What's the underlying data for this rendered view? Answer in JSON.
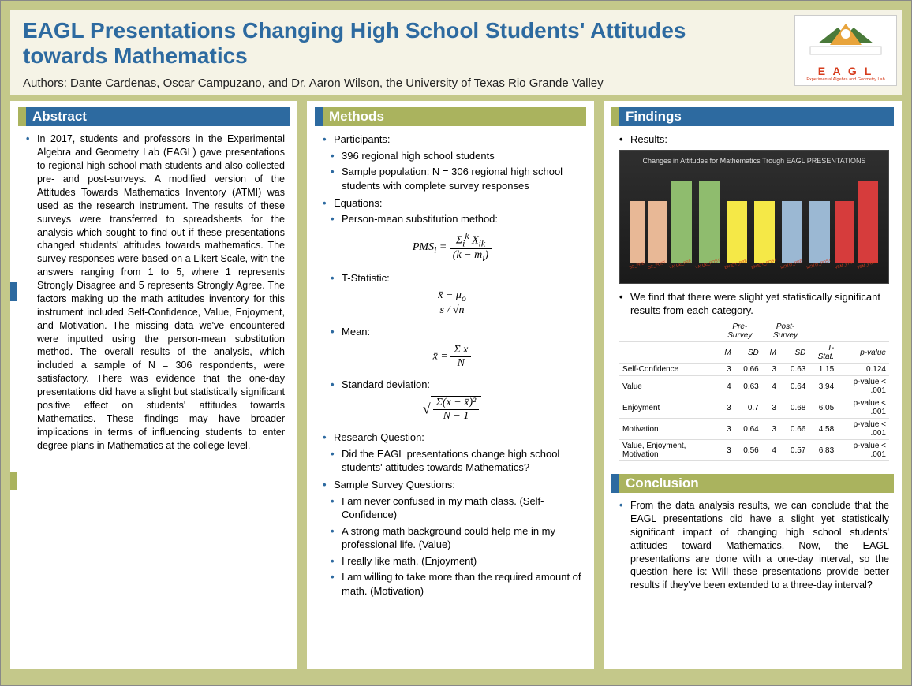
{
  "header": {
    "title": "EAGL Presentations Changing High School Students' Attitudes towards Mathematics",
    "authors": "Authors: Dante Cardenas, Oscar Campuzano, and Dr. Aaron Wilson, the University of Texas Rio Grande Valley",
    "logo_text": "E A G L",
    "logo_sub": "Experimental Algebra and Geometry Lab"
  },
  "colors": {
    "header_blue": "#2d6aa0",
    "header_olive": "#aab35e",
    "bg": "#c4c88a",
    "panel": "#ffffff",
    "chart_bg": "#2a2a2a"
  },
  "abstract": {
    "heading": "Abstract",
    "text": "In 2017, students and professors in the Experimental Algebra and Geometry Lab (EAGL) gave presentations to regional high school math students and also collected pre- and post-surveys. A modified version of the Attitudes Towards Mathematics Inventory (ATMI) was used as the research instrument. The results of these surveys were transferred to spreadsheets for the analysis which sought to find out if these presentations changed students' attitudes towards mathematics. The survey responses were based on a Likert Scale, with the answers ranging from 1 to 5, where 1 represents Strongly Disagree and 5 represents Strongly Agree. The factors making up the math attitudes inventory for this instrument included Self-Confidence, Value, Enjoyment, and Motivation. The missing data we've encountered were inputted using the person-mean substitution method. The overall results of the analysis, which included a sample of N = 306 respondents, were satisfactory. There was evidence that the one-day presentations did have a slight but statistically significant positive effect on students' attitudes towards Mathematics. These findings may have broader implications in terms of influencing students to enter degree plans in Mathematics at the college level."
  },
  "methods": {
    "heading": "Methods",
    "participants_label": "Participants:",
    "participants": [
      "396 regional high school students",
      "Sample population: N = 306 regional high school students with complete survey responses"
    ],
    "equations_label": "Equations:",
    "eq_items": [
      "Person-mean substitution method:",
      "T-Statistic:",
      "Mean:",
      "Standard deviation:"
    ],
    "research_q_label": "Research Question:",
    "research_q": "Did the EAGL presentations change high school students' attitudes towards Mathematics?",
    "sample_q_label": "Sample Survey Questions:",
    "sample_qs": [
      "I am never confused in my math class. (Self-Confidence)",
      "A strong math background could help me in my professional life. (Value)",
      "I really like math. (Enjoyment)",
      "I am willing to take more than the required amount of math. (Motivation)"
    ]
  },
  "findings": {
    "heading": "Findings",
    "results_label": "Results:",
    "chart": {
      "title": "Changes in Attitudes for Mathematics Trough EAGL PRESENTATIONS",
      "bars": [
        {
          "label": "SC_PRE",
          "value": 3.0,
          "color": "#e8b896"
        },
        {
          "label": "SC_POST",
          "value": 3.0,
          "color": "#e8b896"
        },
        {
          "label": "VALUE_PRE",
          "value": 4.0,
          "color": "#8fbc6e"
        },
        {
          "label": "VALUE_POST",
          "value": 4.0,
          "color": "#8fbc6e"
        },
        {
          "label": "ENJOY_PRE",
          "value": 3.0,
          "color": "#f5e847"
        },
        {
          "label": "ENJOY_POST",
          "value": 3.0,
          "color": "#f5e847"
        },
        {
          "label": "MOTIV_PRE",
          "value": 3.0,
          "color": "#9bb8d3"
        },
        {
          "label": "MOTIV_POST",
          "value": 3.0,
          "color": "#9bb8d3"
        },
        {
          "label": "VEM_PRE",
          "value": 3.0,
          "color": "#d63c3c"
        },
        {
          "label": "VEM_POST",
          "value": 4.0,
          "color": "#d63c3c"
        }
      ],
      "ymax": 5,
      "bar_height_scale": 26
    },
    "summary": "We find that there were slight yet statistically significant results from each category.",
    "table": {
      "group_headers": [
        "",
        "Pre-Survey",
        "Post-Survey",
        "",
        ""
      ],
      "columns": [
        "",
        "M",
        "SD",
        "M",
        "SD",
        "T-Stat.",
        "p-value"
      ],
      "rows": [
        [
          "Self-Confidence",
          "3",
          "0.66",
          "3",
          "0.63",
          "1.15",
          "0.124"
        ],
        [
          "Value",
          "4",
          "0.63",
          "4",
          "0.64",
          "3.94",
          "p-value < .001"
        ],
        [
          "Enjoyment",
          "3",
          "0.7",
          "3",
          "0.68",
          "6.05",
          "p-value < .001"
        ],
        [
          "Motivation",
          "3",
          "0.64",
          "3",
          "0.66",
          "4.58",
          "p-value < .001"
        ],
        [
          "Value, Enjoyment, Motivation",
          "3",
          "0.56",
          "4",
          "0.57",
          "6.83",
          "p-value < .001"
        ]
      ]
    }
  },
  "conclusion": {
    "heading": "Conclusion",
    "text": "From the data analysis results, we can conclude that the EAGL presentations did have a slight yet statistically significant impact of changing high school students' attitudes toward Mathematics. Now, the EAGL presentations are done with a one-day interval, so the question here is: Will these presentations provide better results if they've been extended to a three-day interval?"
  }
}
